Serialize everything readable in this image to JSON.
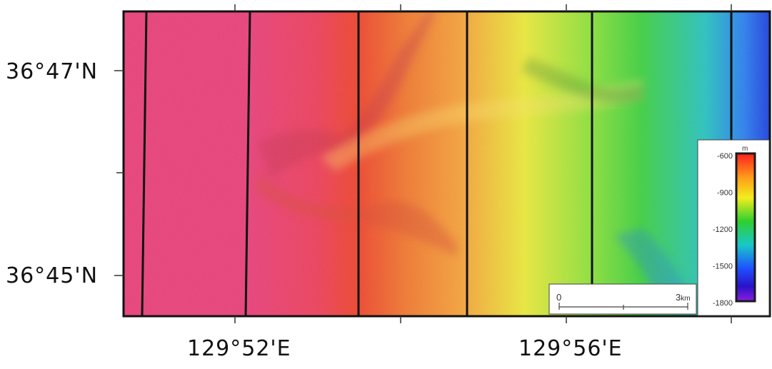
{
  "map": {
    "lat_labels": [
      "36°47'N",
      "36°45'N"
    ],
    "lon_labels": [
      "129°52'E",
      "129°56'E"
    ]
  },
  "scale_bar": {
    "start_label": "0",
    "end_value": "3",
    "end_unit": "km"
  },
  "legend": {
    "unit": "m",
    "ticks": [
      "-600",
      "-900",
      "-1200",
      "-1500",
      "-1800"
    ],
    "gradient_colors": [
      "#ff1f1f",
      "#ff9a1a",
      "#f2ee1c",
      "#2fcf2f",
      "#18c8c8",
      "#1f4fff",
      "#2a12c8",
      "#8a1ee0"
    ]
  },
  "colors": {
    "shallow": "#ea3f78",
    "mid_red": "#f0432c",
    "orange": "#f7a13a",
    "yellow": "#ecea3a",
    "green": "#3fd13f",
    "cyan": "#27c3c0",
    "blue": "#1c3fdf"
  }
}
